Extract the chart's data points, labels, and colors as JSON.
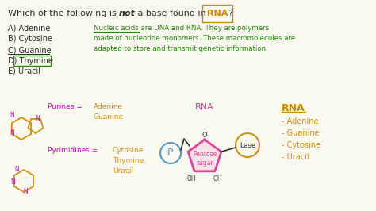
{
  "bg_color": "#faf9f0",
  "title_text": "Which of the following is ",
  "title_not": "not",
  "title_end": " a base found in ",
  "title_rna": "RNA",
  "title_q": "?",
  "choices": [
    "A) Adenine",
    "B) Cytosine",
    "C) Guanine",
    "D) Thymine",
    "E) Uracil"
  ],
  "nucleic_line1": "Nucleic acids are DNA and RNA. They are polymers",
  "nucleic_line2": "made of nucleotide monomers. These macromolecules are",
  "nucleic_line3": "adapted to store and transmit genetic information.",
  "purines_label": "Purines =",
  "purines_value1": "Adenine",
  "purines_value2": "Guanine",
  "pyrimidines_label": "Pyrimidines =",
  "pyrimidines_value": "Cytosine\nThymine\nUracil",
  "rna_center": "RNA",
  "pentose_label": "Pentose\nsugar",
  "base_label": "base",
  "oh_left": "OH",
  "oh_right": "OH",
  "o_top": "O",
  "p_label": "P",
  "rna_list_title": "RNA",
  "rna_list": [
    "- Adenine",
    "- Guanine",
    "- Cytosine",
    "- Uracil"
  ],
  "color_black": "#2a2a2a",
  "color_green": "#22880a",
  "color_orange": "#d4900a",
  "color_magenta": "#cc00cc",
  "color_blue": "#5599cc",
  "color_pink": "#e0449a",
  "color_title_rna": "#cc8800",
  "color_rna_list_title": "#cc8800"
}
